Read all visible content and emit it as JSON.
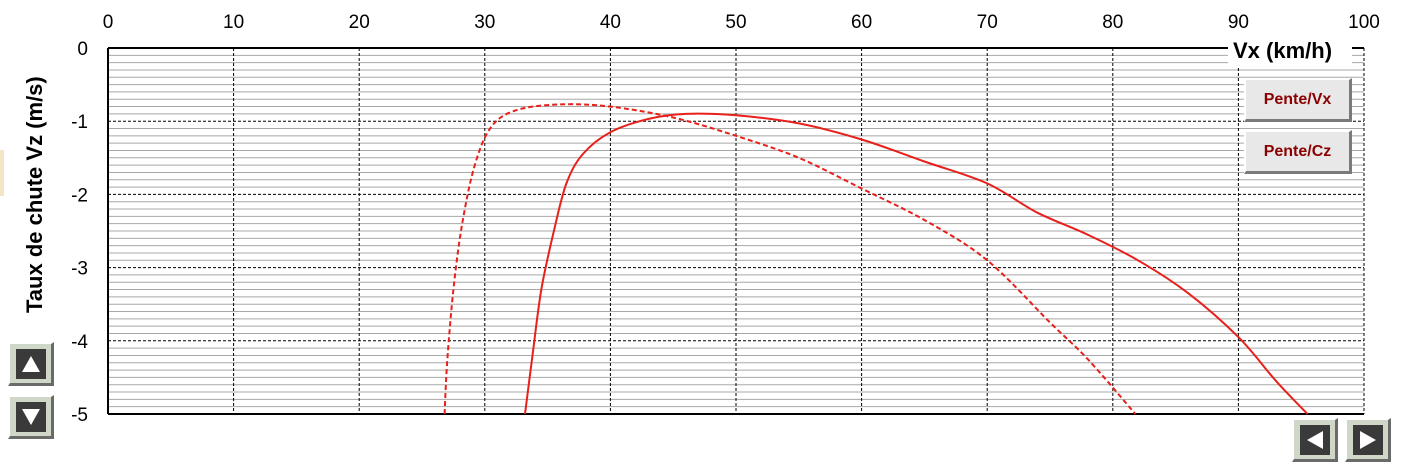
{
  "chart_data": {
    "type": "line",
    "title": "",
    "xlabel": "Vx (km/h)",
    "ylabel": "Taux de chute Vz (m/s)",
    "xlim": [
      0,
      100
    ],
    "ylim": [
      -5,
      0
    ],
    "x_ticks": [
      "0",
      "10",
      "20",
      "30",
      "40",
      "50",
      "60",
      "70",
      "80",
      "90",
      "100"
    ],
    "y_ticks": [
      "0",
      "-1",
      "-2",
      "-3",
      "-4",
      "-5"
    ],
    "x_axis_position": "top",
    "grid": true,
    "series": [
      {
        "style": "solid",
        "color": "#e8201b",
        "points": [
          [
            33.2,
            -5.0
          ],
          [
            33.8,
            -4.2
          ],
          [
            34.5,
            -3.3
          ],
          [
            35.5,
            -2.5
          ],
          [
            36.5,
            -1.85
          ],
          [
            37.8,
            -1.45
          ],
          [
            40,
            -1.15
          ],
          [
            43,
            -0.97
          ],
          [
            46,
            -0.9
          ],
          [
            50,
            -0.92
          ],
          [
            55,
            -1.03
          ],
          [
            60,
            -1.25
          ],
          [
            65,
            -1.55
          ],
          [
            70,
            -1.85
          ],
          [
            74,
            -2.25
          ],
          [
            78,
            -2.55
          ],
          [
            82,
            -2.9
          ],
          [
            86,
            -3.35
          ],
          [
            90,
            -3.95
          ],
          [
            93,
            -4.55
          ],
          [
            95.5,
            -5.0
          ]
        ]
      },
      {
        "style": "dashed",
        "color": "#e8201b",
        "points": [
          [
            26.8,
            -5.0
          ],
          [
            27.0,
            -4.3
          ],
          [
            27.5,
            -3.3
          ],
          [
            28.2,
            -2.4
          ],
          [
            29.2,
            -1.6
          ],
          [
            30.5,
            -1.08
          ],
          [
            32.5,
            -0.85
          ],
          [
            36,
            -0.77
          ],
          [
            40,
            -0.8
          ],
          [
            45,
            -0.95
          ],
          [
            50,
            -1.2
          ],
          [
            55,
            -1.5
          ],
          [
            60,
            -1.92
          ],
          [
            65,
            -2.35
          ],
          [
            70,
            -2.9
          ],
          [
            75,
            -3.75
          ],
          [
            78,
            -4.25
          ],
          [
            81.8,
            -5.0
          ]
        ]
      }
    ]
  },
  "buttons": {
    "pente_vx": "Pente/Vx",
    "pente_cz": "Pente/Cz"
  },
  "icons": {
    "up": "up-arrow-icon",
    "down": "down-arrow-icon",
    "left": "left-arrow-icon",
    "right": "right-arrow-icon"
  }
}
